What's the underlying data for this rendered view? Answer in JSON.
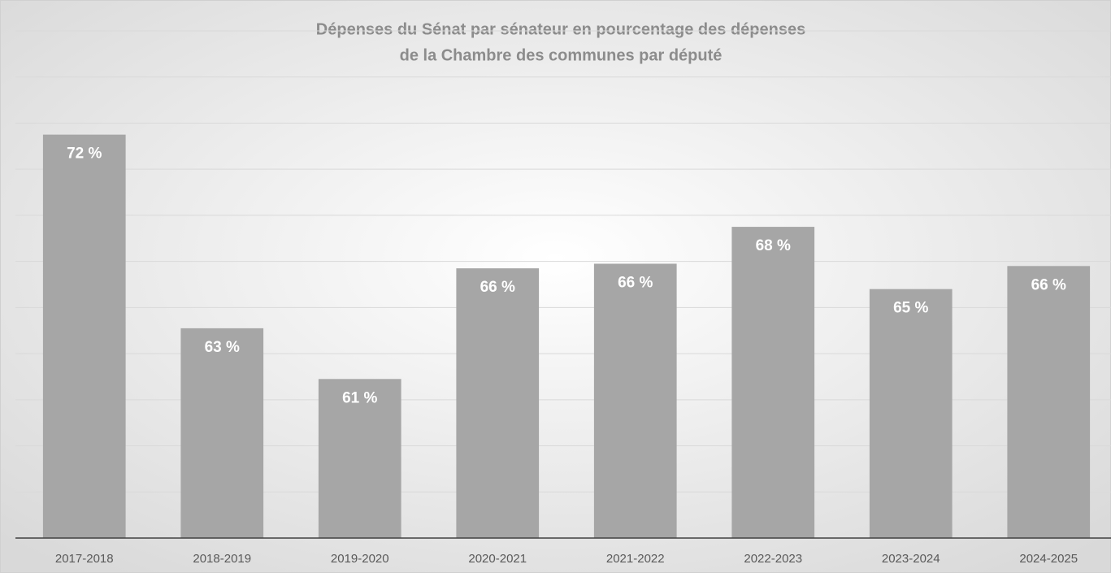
{
  "chart_data": {
    "type": "bar",
    "title": [
      "Dépenses du Sénat par sénateur en pourcentage des dépenses",
      "de la Chambre des communes par député"
    ],
    "categories": [
      "2017-2018",
      "2018-2019",
      "2019-2020",
      "2020-2021",
      "2021-2022",
      "2022-2023",
      "2023-2024",
      "2024-2025"
    ],
    "values": [
      71.5,
      63.1,
      60.9,
      65.7,
      65.9,
      67.5,
      64.8,
      65.8
    ],
    "value_labels": [
      "72 %",
      "63 %",
      "61 %",
      "66 %",
      "66 %",
      "68 %",
      "65 %",
      "66 %"
    ],
    "color": "#a6a6a6",
    "ylim": [
      54,
      76
    ],
    "yticks": [
      54,
      56,
      58,
      60,
      62,
      64,
      66,
      68,
      70,
      72,
      74,
      76
    ],
    "grid": true
  }
}
